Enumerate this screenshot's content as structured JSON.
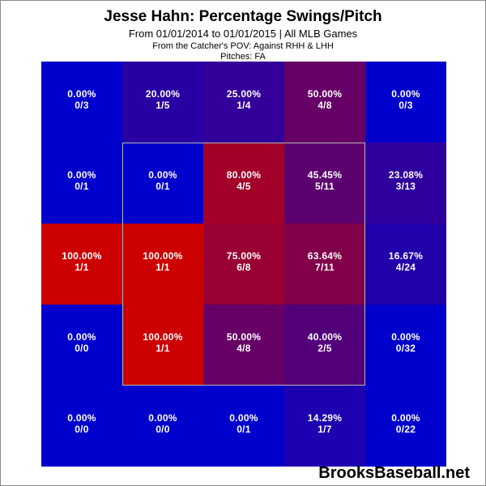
{
  "header": {
    "title": "Jesse Hahn: Percentage Swings/Pitch",
    "subtitle": "From 01/01/2014 to 01/01/2015 | All MLB Games",
    "pov": "From the Catcher's POV:  Against RHH & LHH",
    "pitches": "Pitches:  FA"
  },
  "watermark": "BrooksBaseball.net",
  "chart_data": {
    "type": "heatmap",
    "title": "Jesse Hahn: Percentage Swings/Pitch",
    "subtitle": "From 01/01/2014 to 01/01/2015 | All MLB Games",
    "rows": 5,
    "cols": 5,
    "color_scale": {
      "low": "#0000cc",
      "high": "#cc0000"
    },
    "cells": [
      [
        {
          "pct": "0.00%",
          "count": "0/3",
          "value": 0
        },
        {
          "pct": "20.00%",
          "count": "1/5",
          "value": 20
        },
        {
          "pct": "25.00%",
          "count": "1/4",
          "value": 25
        },
        {
          "pct": "50.00%",
          "count": "4/8",
          "value": 50
        },
        {
          "pct": "0.00%",
          "count": "0/3",
          "value": 0
        }
      ],
      [
        {
          "pct": "0.00%",
          "count": "0/1",
          "value": 0
        },
        {
          "pct": "0.00%",
          "count": "0/1",
          "value": 0
        },
        {
          "pct": "80.00%",
          "count": "4/5",
          "value": 80
        },
        {
          "pct": "45.45%",
          "count": "5/11",
          "value": 45.45
        },
        {
          "pct": "23.08%",
          "count": "3/13",
          "value": 23.08
        }
      ],
      [
        {
          "pct": "100.00%",
          "count": "1/1",
          "value": 100
        },
        {
          "pct": "100.00%",
          "count": "1/1",
          "value": 100
        },
        {
          "pct": "75.00%",
          "count": "6/8",
          "value": 75
        },
        {
          "pct": "63.64%",
          "count": "7/11",
          "value": 63.64
        },
        {
          "pct": "16.67%",
          "count": "4/24",
          "value": 16.67
        }
      ],
      [
        {
          "pct": "0.00%",
          "count": "0/0",
          "value": 0
        },
        {
          "pct": "100.00%",
          "count": "1/1",
          "value": 100
        },
        {
          "pct": "50.00%",
          "count": "4/8",
          "value": 50
        },
        {
          "pct": "40.00%",
          "count": "2/5",
          "value": 40
        },
        {
          "pct": "0.00%",
          "count": "0/32",
          "value": 0
        }
      ],
      [
        {
          "pct": "0.00%",
          "count": "0/0",
          "value": 0
        },
        {
          "pct": "0.00%",
          "count": "0/0",
          "value": 0
        },
        {
          "pct": "0.00%",
          "count": "0/1",
          "value": 0
        },
        {
          "pct": "14.29%",
          "count": "1/7",
          "value": 14.29
        },
        {
          "pct": "0.00%",
          "count": "0/22",
          "value": 0
        }
      ]
    ],
    "strike_zone": {
      "rows": [
        1,
        3
      ],
      "cols": [
        1,
        3
      ]
    }
  }
}
